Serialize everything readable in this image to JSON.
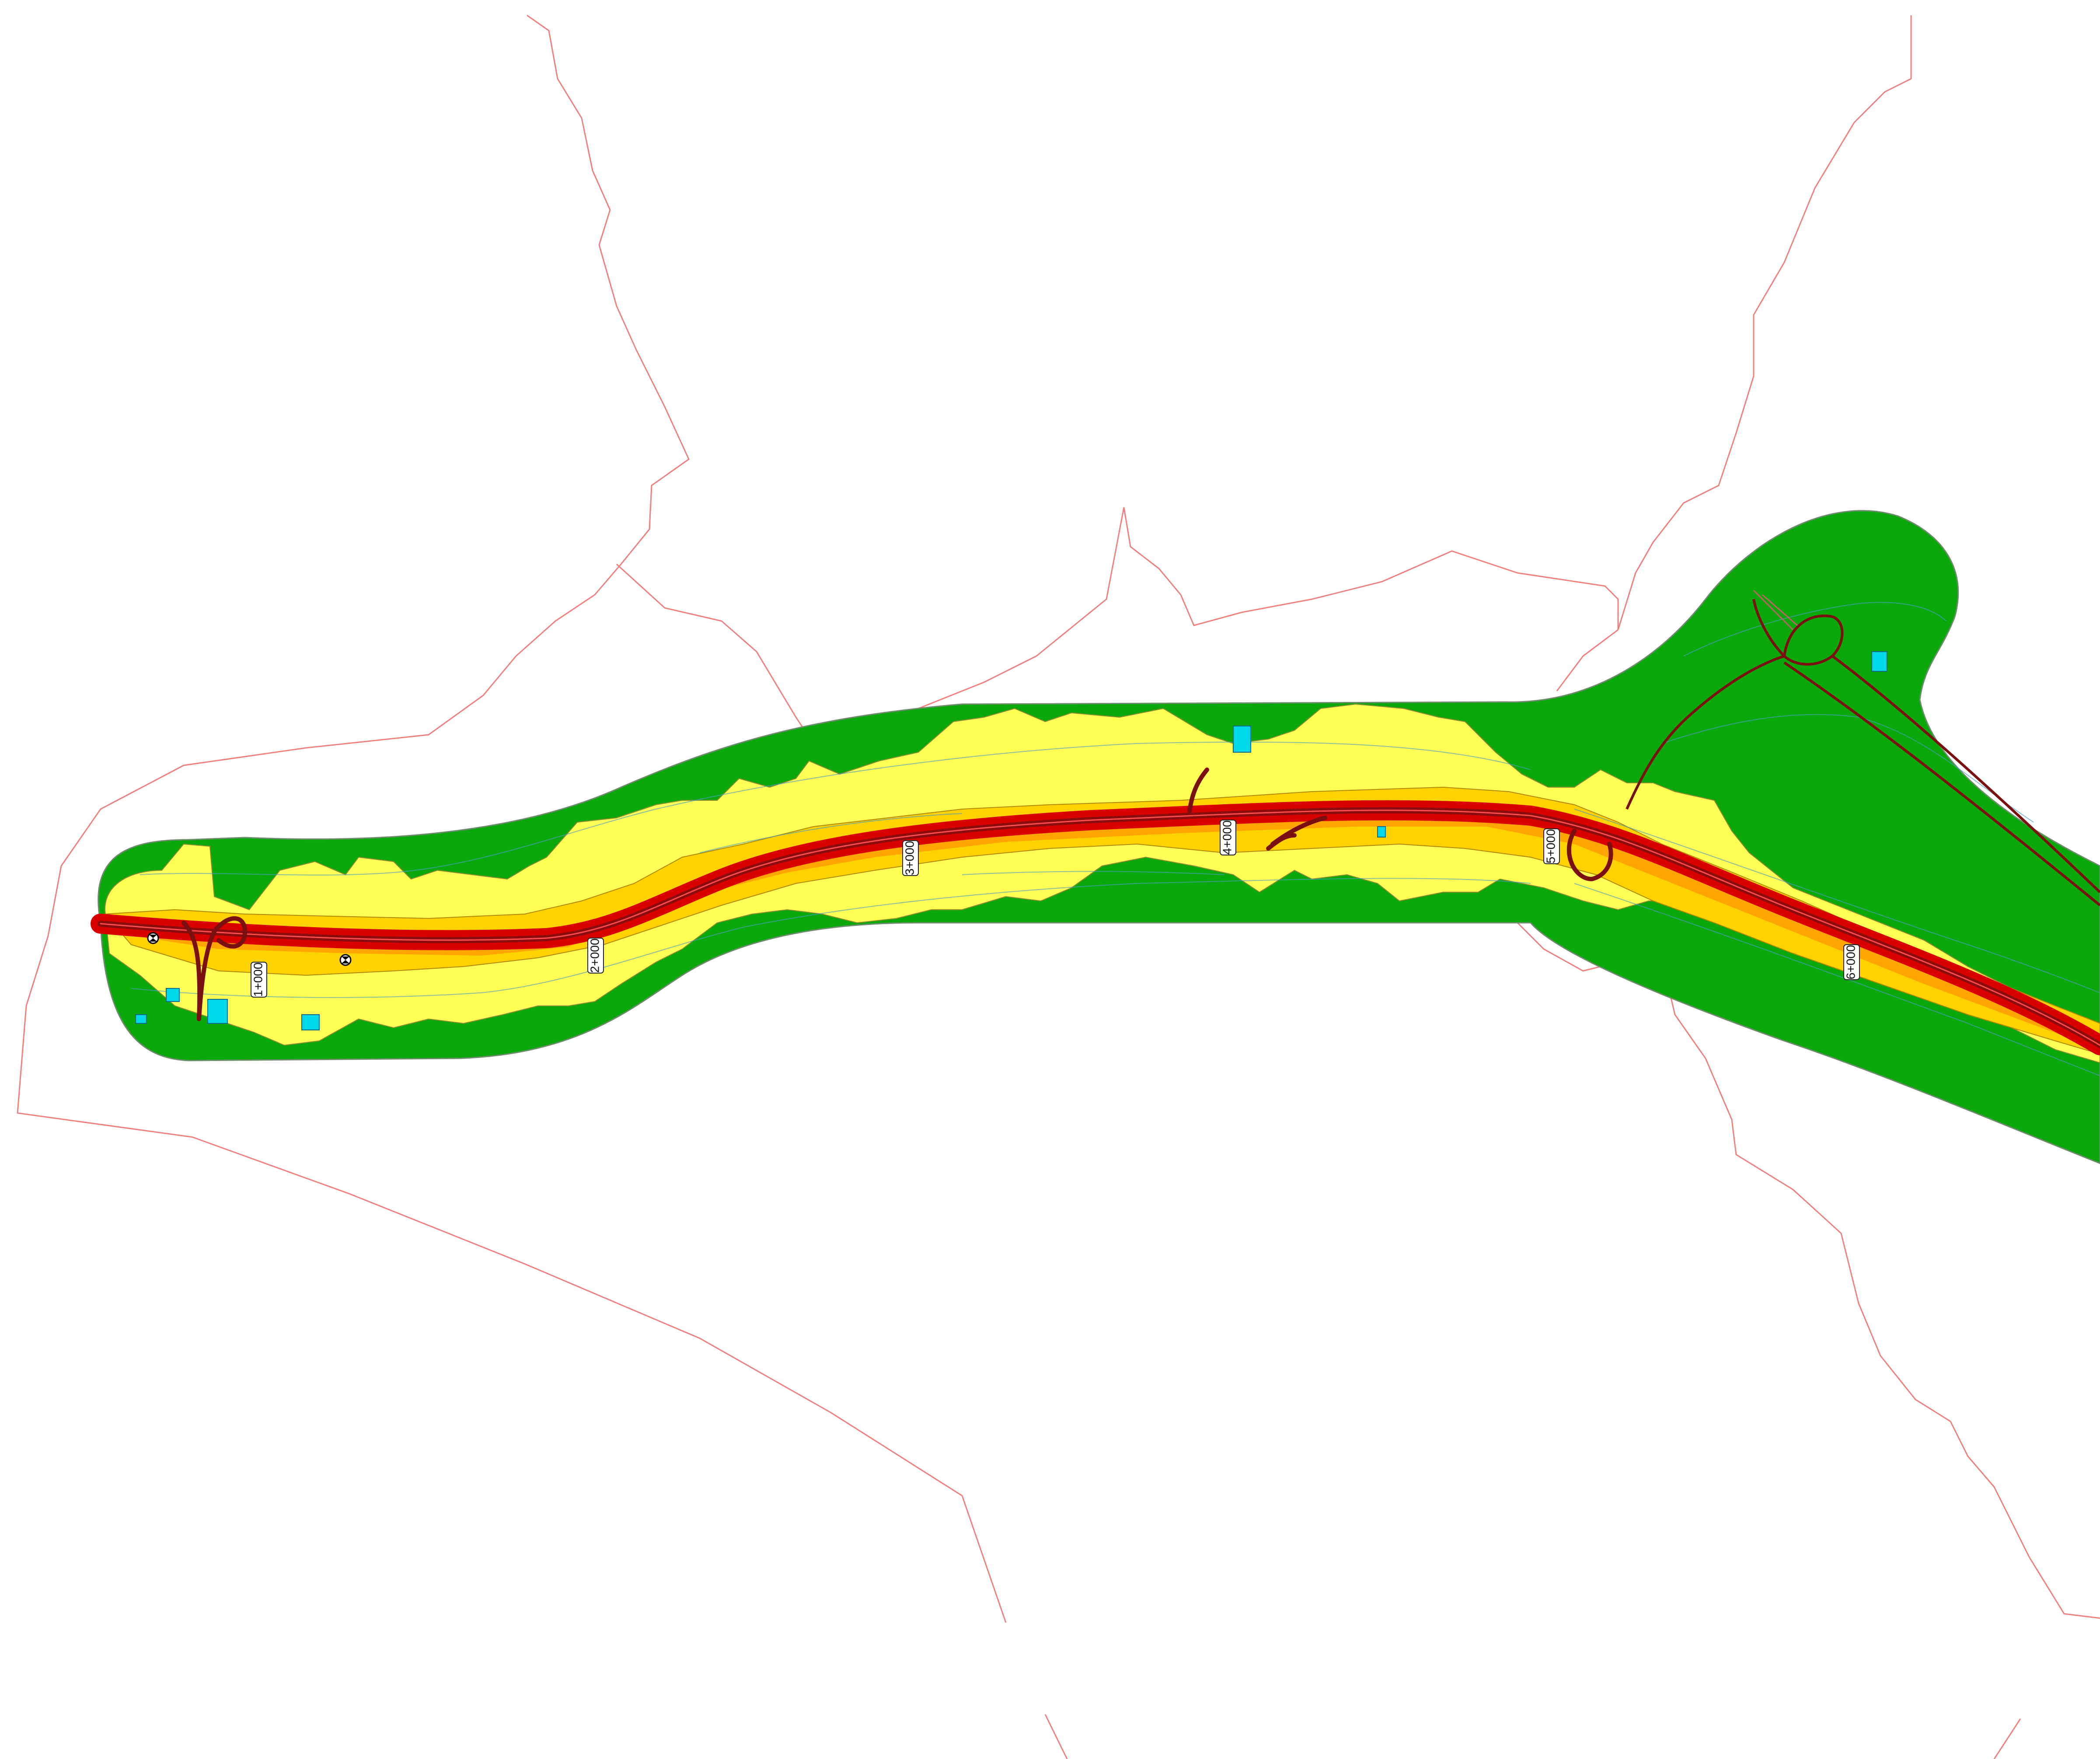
{
  "chainage_labels": [
    "1+000",
    "2+000",
    "3+000",
    "4+000",
    "5+000",
    "6+000"
  ],
  "colors": {
    "background": "#ffffff",
    "boundary": "#f08080",
    "green_zone": "#0aa80a",
    "yellow_zone": "#ffff55",
    "orange_zone": "#ffd200",
    "road_outer": "#d90000",
    "road_core": "#8a0c0c",
    "contour": "#4a9bc2",
    "buildings": "#00d8e8"
  },
  "icons": {
    "station_marker": "circle-cross-icon"
  }
}
